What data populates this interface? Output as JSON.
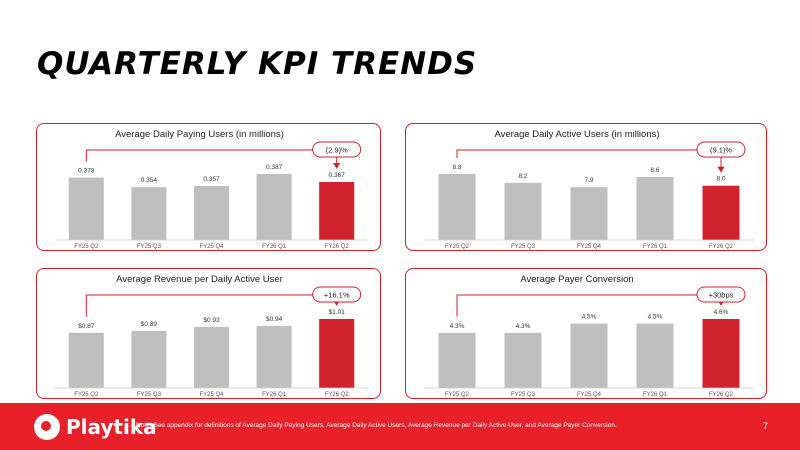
{
  "page": {
    "title": "QUARTERLY KPI TRENDS",
    "page_number": "7"
  },
  "footer": {
    "brand": "Playtika",
    "note": "Note: See appendix for definitions of Average Daily Paying Users, Average Daily Active Users, Average Revenue per Daily Active User, and Average Payer Conversion."
  },
  "colors": {
    "accent": "#d0232c",
    "bar_grey": "#bfbfbf",
    "footer_red": "#e8202a"
  },
  "chart_data": [
    {
      "type": "bar",
      "title": "Average Daily Paying Users (in millions)",
      "categories": [
        "FY25 Q2",
        "FY25 Q3",
        "FY25 Q4",
        "FY26 Q1",
        "FY26 Q2"
      ],
      "values": [
        0.378,
        0.354,
        0.357,
        0.387,
        0.367
      ],
      "labels": [
        "0.378",
        "0.354",
        "0.357",
        "0.387",
        "0.367"
      ],
      "highlight_index": 4,
      "change_label": "(2.9)%"
    },
    {
      "type": "bar",
      "title": "Average Daily Active Users (in millions)",
      "categories": [
        "FY25 Q2",
        "FY25 Q3",
        "FY25 Q4",
        "FY26 Q1",
        "FY26 Q2"
      ],
      "values": [
        8.8,
        8.2,
        7.9,
        8.6,
        8.0
      ],
      "labels": [
        "8.8",
        "8.2",
        "7.9",
        "8.6",
        "8.0"
      ],
      "highlight_index": 4,
      "change_label": "(9.1)%"
    },
    {
      "type": "bar",
      "title": "Average Revenue per Daily Active User",
      "categories": [
        "FY25 Q2",
        "FY25 Q3",
        "FY25 Q4",
        "FY26 Q1",
        "FY26 Q2"
      ],
      "values": [
        0.87,
        0.89,
        0.93,
        0.94,
        1.01
      ],
      "labels": [
        "$0.87",
        "$0.89",
        "$0.93",
        "$0.94",
        "$1.01"
      ],
      "highlight_index": 4,
      "change_label": "+16.1%"
    },
    {
      "type": "bar",
      "title": "Average Payer Conversion",
      "categories": [
        "FY25 Q2",
        "FY25 Q3",
        "FY25 Q4",
        "FY26 Q1",
        "FY26 Q2"
      ],
      "values": [
        4.3,
        4.3,
        4.5,
        4.5,
        4.6
      ],
      "labels": [
        "4.3%",
        "4.3%",
        "4.5%",
        "4.5%",
        "4.6%"
      ],
      "highlight_index": 4,
      "change_label": "+30bps"
    }
  ]
}
